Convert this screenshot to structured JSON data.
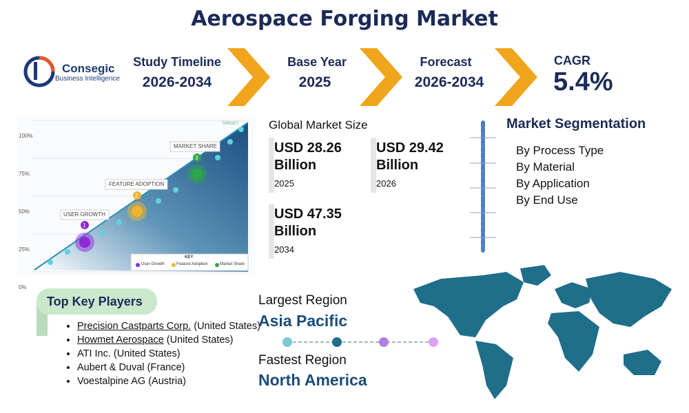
{
  "header": {
    "title": "Aerospace Forging Market"
  },
  "logo": {
    "name": "Consegic",
    "tagline": "Business Intelligence"
  },
  "stats": [
    {
      "label": "Study Timeline",
      "value": "2026-2034"
    },
    {
      "label": "Base Year",
      "value": "2025"
    },
    {
      "label": "Forecast",
      "value": "2026-2034"
    },
    {
      "label": "CAGR",
      "value": "5.4%"
    }
  ],
  "illustration": {
    "axis_labels": [
      "100%",
      "75%",
      "50%",
      "25%",
      "0%"
    ],
    "target": "TARGET",
    "milestones": [
      {
        "number": "1",
        "label": "USER GROWTH"
      },
      {
        "number": "2",
        "label": "FEATURE ADOPTION"
      },
      {
        "number": "3",
        "label": "MARKET SHARE"
      }
    ],
    "key_title": "KEY",
    "key_items": [
      "User Growth",
      "Feature Adoption",
      "Market Share"
    ]
  },
  "market_size": {
    "title": "Global Market Size",
    "items": [
      {
        "amount": "USD 28.26 Billion",
        "year": "2025"
      },
      {
        "amount": "USD 29.42 Billion",
        "year": "2026"
      },
      {
        "amount": "USD 47.35 Billion",
        "year": "2034"
      }
    ]
  },
  "segmentation": {
    "title": "Market Segmentation",
    "items": [
      "By Process Type",
      "By Material",
      "By Application",
      "By End Use"
    ]
  },
  "key_players": {
    "title": "Top Key Players",
    "players": [
      {
        "name": "Precision Castparts Corp.",
        "location": "(United States)",
        "linked": true
      },
      {
        "name": "Howmet Aerospace",
        "location": "(United States)",
        "linked": true
      },
      {
        "name": "ATI Inc.",
        "location": "(United States)",
        "linked": false
      },
      {
        "name": "Aubert & Duval",
        "location": "(France)",
        "linked": false
      },
      {
        "name": "Voestalpine AG",
        "location": "(Austria)",
        "linked": false
      }
    ]
  },
  "regions": {
    "largest_label": "Largest Region",
    "largest_value": "Asia Pacific",
    "fastest_label": "Fastest Region",
    "fastest_value": "North America"
  }
}
